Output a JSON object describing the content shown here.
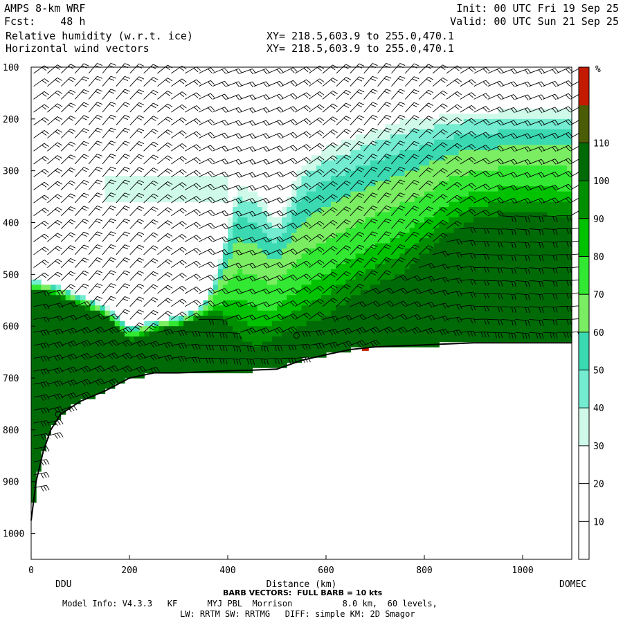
{
  "header": {
    "model": "AMPS 8-km WRF",
    "fcst_label": "Fcst:",
    "fcst_hours": "48 h",
    "field1": "Relative humidity (w.r.t. ice)",
    "field2": "Horizontal wind vectors",
    "init": "Init: 00 UTC Fri 19 Sep 25",
    "valid": "Valid: 00 UTC Sun 21 Sep 25",
    "xy1": "XY= 218.5,603.9 to 255.0,470.1",
    "xy2": "XY= 218.5,603.9 to 255.0,470.1"
  },
  "footer": {
    "barb_note": "BARB VECTORS:  FULL BARB = 10 kts",
    "model_info": "Model Info: V4.3.3   KF      MYJ PBL  Morrison          8.0 km,  60 levels,",
    "physics": "LW: RRTM SW: RRTMG   DIFF: simple KM: 2D Smagor"
  },
  "chart_data": {
    "type": "heatmap",
    "xlabel": "Distance (km)",
    "ylabel": "",
    "x_start_label": "DDU",
    "x_end_label": "DOMEC",
    "xlim": [
      0,
      1100
    ],
    "ylim": [
      1050,
      100
    ],
    "x_ticks": [
      "0",
      "200",
      "400",
      "600",
      "800",
      "1000"
    ],
    "x_tick_values": [
      0,
      200,
      400,
      600,
      800,
      1000
    ],
    "y_ticks": [
      "100",
      "200",
      "300",
      "400",
      "500",
      "600",
      "700",
      "800",
      "900",
      "1000"
    ],
    "y_tick_values": [
      100,
      200,
      300,
      400,
      500,
      600,
      700,
      800,
      900,
      1000
    ],
    "colorbar": {
      "unit": "%",
      "labels": [
        "10",
        "20",
        "30",
        "40",
        "50",
        "60",
        "70",
        "80",
        "90",
        "100",
        "110"
      ],
      "levels": [
        0,
        10,
        20,
        30,
        40,
        50,
        60,
        70,
        80,
        90,
        100,
        110,
        120
      ],
      "colors": [
        "#ffffff",
        "#ffffff",
        "#ffffff",
        "#cffaea",
        "#73ecd1",
        "#3ad9b2",
        "#7bed63",
        "#33e833",
        "#00c200",
        "#008f00",
        "#006b06",
        "#4a5c06",
        "#c41a00"
      ]
    },
    "terrain_km": [
      0,
      10,
      25,
      40,
      60,
      100,
      150,
      200,
      250,
      300,
      350,
      400,
      450,
      500,
      550,
      600,
      650,
      700,
      750,
      800,
      850,
      900,
      950,
      1000,
      1050,
      1100
    ],
    "terrain_p": [
      975,
      900,
      840,
      800,
      770,
      745,
      725,
      700,
      690,
      690,
      688,
      686,
      685,
      683,
      666,
      655,
      645,
      640,
      638,
      636,
      634,
      632,
      632,
      632,
      632,
      632
    ],
    "moist_layer_top_km": [
      0,
      50,
      100,
      150,
      200,
      250,
      300,
      350,
      380,
      420,
      460,
      500,
      550,
      600,
      650,
      700,
      750,
      800,
      850,
      900,
      950,
      1000,
      1050,
      1100
    ],
    "moist_layer_top_p": [
      530,
      540,
      560,
      580,
      630,
      610,
      600,
      580,
      580,
      620,
      640,
      620,
      600,
      580,
      545,
      520,
      500,
      460,
      420,
      395,
      385,
      385,
      385,
      390
    ],
    "fringe_top_p": [
      520,
      520,
      540,
      560,
      600,
      590,
      580,
      560,
      490,
      330,
      340,
      400,
      290,
      255,
      240,
      220,
      205,
      200,
      190,
      185,
      185,
      180,
      180,
      180
    ],
    "upper_cloud": {
      "x_range_km": [
        150,
        400
      ],
      "p_range": [
        310,
        360
      ],
      "rh_percent": 30
    },
    "max_value_marker": {
      "x_km": 680,
      "p": 645,
      "rh_percent": 115
    },
    "circles": [
      {
        "x_km": 55,
        "p": 770
      },
      {
        "x_km": 540,
        "p": 618
      }
    ],
    "wind_barbs_note": "Full barb = 10 kts"
  }
}
